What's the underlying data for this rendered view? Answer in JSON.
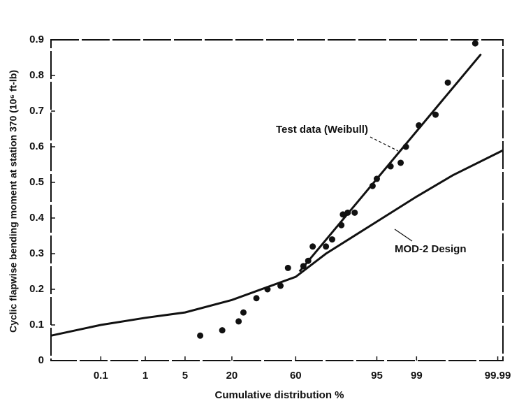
{
  "chart_data": {
    "type": "scatter",
    "x_scale": "probability",
    "x_label": "Cumulative distribution %",
    "y_label": "Cyclic flapwise bending moment at station 370 (10⁶ ft-lb)",
    "xlim": [
      0.004,
      99.993
    ],
    "xticks": [
      0.1,
      1,
      5,
      20,
      60,
      95,
      99,
      99.99
    ],
    "ylim": [
      0,
      0.9
    ],
    "yticks": [
      0,
      0.1,
      0.2,
      0.3,
      0.4,
      0.5,
      0.6,
      0.7,
      0.8,
      0.9
    ],
    "points": {
      "color": "#111",
      "x": [
        8.3,
        15.7,
        23.4,
        26,
        33.7,
        40.9,
        49.7,
        54.8,
        65,
        68,
        70.7,
        78,
        81,
        85,
        85.6,
        87.4,
        89.7,
        94.2,
        95,
        97,
        98,
        98.4,
        99.1,
        99.6,
        99.79,
        99.957
      ],
      "values": [
        0.07,
        0.085,
        0.11,
        0.135,
        0.175,
        0.2,
        0.21,
        0.26,
        0.265,
        0.28,
        0.32,
        0.32,
        0.34,
        0.38,
        0.41,
        0.415,
        0.415,
        0.49,
        0.51,
        0.545,
        0.555,
        0.6,
        0.66,
        0.69,
        0.78,
        0.89
      ]
    },
    "lines": [
      {
        "name": "Test data (Weibull)",
        "color": "#111",
        "x": [
          62.5,
          99.97
        ],
        "values": [
          0.25,
          0.86
        ]
      },
      {
        "name": "MOD-2 Design",
        "color": "#111",
        "x": [
          0.004,
          0.1,
          1,
          5,
          20,
          60,
          78,
          95,
          99,
          99.84,
          99.993
        ],
        "values": [
          0.07,
          0.1,
          0.12,
          0.135,
          0.17,
          0.235,
          0.3,
          0.39,
          0.46,
          0.52,
          0.59
        ]
      }
    ]
  }
}
